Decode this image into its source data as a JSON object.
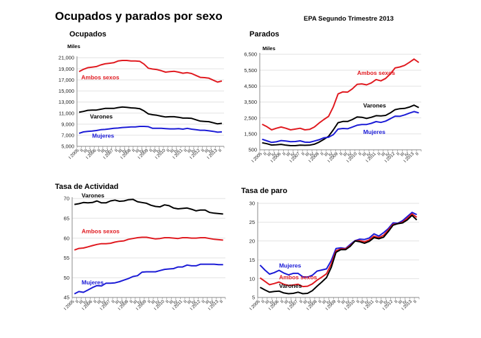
{
  "header": {
    "title": "Ocupados y parados por sexo",
    "source": "EPA   Segundo Trimestre 2013"
  },
  "colors": {
    "ambos": "#e0191f",
    "varones": "#000000",
    "mujeres": "#1a1ad6",
    "grid": "#e2e2e2"
  },
  "quarters": [
    "I 2005",
    "II",
    "III",
    "IV",
    "I 2006",
    "II",
    "III",
    "IV",
    "I 2007",
    "II",
    "III",
    "IV",
    "I 2008",
    "II",
    "III",
    "IV",
    "I 2009",
    "II",
    "III",
    "IV",
    "I 2010",
    "II",
    "III",
    "IV",
    "I 2011",
    "II",
    "III",
    "IV",
    "I 2012",
    "II",
    "III",
    "IV",
    "I 2013",
    "II"
  ],
  "chart_data": [
    {
      "id": "ocupados",
      "type": "line",
      "title": "Ocupados",
      "ylabel": "Miles",
      "ylim": [
        5000,
        21000
      ],
      "yticks": [
        5000,
        7000,
        9000,
        11000,
        13000,
        15000,
        17000,
        19000,
        21000
      ],
      "ytick_labels": [
        "5,000",
        "7,000",
        "9,000",
        "11,000",
        "13,000",
        "15,000",
        "17,000",
        "19,000",
        "21,000"
      ],
      "grid": true,
      "series": [
        {
          "name": "Ambos sexos",
          "key": "ambos",
          "values": [
            18500,
            18900,
            19200,
            19300,
            19400,
            19700,
            19900,
            20000,
            20100,
            20400,
            20500,
            20500,
            20400,
            20400,
            20350,
            19850,
            19100,
            18950,
            18850,
            18650,
            18400,
            18500,
            18550,
            18400,
            18200,
            18300,
            18150,
            17800,
            17450,
            17400,
            17300,
            16950,
            16600,
            16800
          ]
        },
        {
          "name": "Varones",
          "key": "varones",
          "values": [
            11150,
            11300,
            11500,
            11550,
            11550,
            11700,
            11850,
            11850,
            11850,
            12000,
            12100,
            12050,
            11950,
            11900,
            11800,
            11400,
            10850,
            10700,
            10600,
            10450,
            10300,
            10350,
            10350,
            10250,
            10100,
            10100,
            10050,
            9800,
            9550,
            9500,
            9450,
            9250,
            9050,
            9150
          ]
        },
        {
          "name": "Mujeres",
          "key": "mujeres",
          "values": [
            7350,
            7600,
            7700,
            7750,
            7850,
            8000,
            8050,
            8150,
            8250,
            8300,
            8400,
            8450,
            8500,
            8500,
            8600,
            8600,
            8550,
            8250,
            8250,
            8250,
            8200,
            8150,
            8150,
            8200,
            8100,
            8250,
            8100,
            8000,
            7900,
            7900,
            7800,
            7700,
            7550,
            7600
          ]
        }
      ],
      "labels": [
        {
          "text": "Ambos sexos",
          "key": "ambos",
          "x": 0.5,
          "y": 17100
        },
        {
          "text": "Varones",
          "key": "varones",
          "x": 2.5,
          "y": 10000
        },
        {
          "text": "Mujeres",
          "key": "mujeres",
          "x": 3.0,
          "y": 6550
        }
      ]
    },
    {
      "id": "parados",
      "type": "line",
      "title": "Parados",
      "ylabel": "Miles",
      "ylim": [
        500,
        6500
      ],
      "yticks": [
        500,
        1500,
        2500,
        3500,
        4500,
        5500,
        6500
      ],
      "ytick_labels": [
        "500",
        "1,500",
        "2,500",
        "3,500",
        "4,500",
        "5,500",
        "6,500"
      ],
      "grid": true,
      "series": [
        {
          "name": "Ambos sexos",
          "key": "ambos",
          "values": [
            2100,
            1950,
            1750,
            1850,
            1930,
            1850,
            1750,
            1800,
            1850,
            1750,
            1780,
            1930,
            2180,
            2400,
            2600,
            3200,
            4010,
            4140,
            4120,
            4330,
            4610,
            4640,
            4580,
            4700,
            4910,
            4830,
            4980,
            5270,
            5640,
            5700,
            5800,
            5990,
            6200,
            5980
          ]
        },
        {
          "name": "Varones",
          "key": "varones",
          "values": [
            940,
            880,
            800,
            810,
            840,
            790,
            760,
            760,
            790,
            780,
            790,
            850,
            980,
            1150,
            1350,
            1750,
            2200,
            2280,
            2280,
            2400,
            2560,
            2540,
            2470,
            2540,
            2640,
            2630,
            2660,
            2820,
            3020,
            3080,
            3100,
            3180,
            3300,
            3150
          ]
        },
        {
          "name": "Mujeres",
          "key": "mujeres",
          "values": [
            1160,
            1060,
            960,
            1000,
            1080,
            1050,
            1010,
            1020,
            1060,
            980,
            970,
            1050,
            1130,
            1250,
            1290,
            1450,
            1800,
            1840,
            1820,
            1930,
            2040,
            2090,
            2090,
            2160,
            2270,
            2220,
            2300,
            2450,
            2610,
            2600,
            2690,
            2800,
            2900,
            2820
          ]
        }
      ],
      "labels": [
        {
          "text": "Ambos sexos",
          "key": "ambos",
          "x": 20.0,
          "y": 5200
        },
        {
          "text": "Varones",
          "key": "varones",
          "x": 21.3,
          "y": 3150
        },
        {
          "text": "Mujeres",
          "key": "mujeres",
          "x": 21.3,
          "y": 1500
        }
      ]
    },
    {
      "id": "tasa-actividad",
      "type": "line",
      "title": "Tasa de Actividad",
      "ylabel": "",
      "ylim": [
        45,
        70
      ],
      "yticks": [
        45,
        50,
        55,
        60,
        65,
        70
      ],
      "ytick_labels": [
        "45",
        "50",
        "55",
        "60",
        "65",
        "70"
      ],
      "grid": true,
      "series": [
        {
          "name": "Ambos sexos",
          "key": "ambos",
          "values": [
            57.0,
            57.4,
            57.5,
            57.8,
            58.1,
            58.4,
            58.6,
            58.6,
            58.7,
            59.0,
            59.2,
            59.3,
            59.7,
            59.9,
            60.1,
            60.2,
            60.2,
            60.0,
            59.8,
            59.9,
            60.1,
            60.1,
            60.0,
            59.9,
            60.1,
            60.1,
            60.0,
            60.0,
            60.1,
            60.1,
            59.9,
            59.7,
            59.6,
            59.5
          ]
        },
        {
          "name": "Varones",
          "key": "varones",
          "values": [
            68.5,
            68.7,
            69.0,
            68.9,
            69.0,
            69.4,
            68.9,
            68.9,
            69.4,
            69.6,
            69.3,
            69.4,
            69.7,
            69.8,
            69.2,
            69.0,
            68.8,
            68.3,
            68.0,
            67.9,
            68.4,
            68.2,
            67.6,
            67.4,
            67.5,
            67.6,
            67.3,
            66.9,
            67.1,
            67.1,
            66.5,
            66.3,
            66.2,
            66.1
          ]
        },
        {
          "name": "Mujeres",
          "key": "mujeres",
          "values": [
            45.9,
            46.5,
            46.3,
            46.9,
            47.5,
            48.0,
            47.9,
            48.6,
            48.6,
            48.7,
            49.0,
            49.4,
            49.8,
            50.3,
            50.5,
            51.4,
            51.5,
            51.5,
            51.5,
            51.8,
            52.1,
            52.2,
            52.3,
            52.7,
            52.7,
            53.2,
            53.0,
            53.0,
            53.4,
            53.4,
            53.4,
            53.4,
            53.3,
            53.3
          ]
        }
      ],
      "labels": [
        {
          "text": "Varones",
          "key": "varones",
          "x": 1.6,
          "y": 70.3
        },
        {
          "text": "Ambos sexos",
          "key": "ambos",
          "x": 1.6,
          "y": 61.2
        },
        {
          "text": "Mujeres",
          "key": "mujeres",
          "x": 1.6,
          "y": 48.3
        }
      ]
    },
    {
      "id": "tasa-paro",
      "type": "line",
      "title": "Tasa de paro",
      "ylabel": "",
      "ylim": [
        5,
        30
      ],
      "yticks": [
        5,
        10,
        15,
        20,
        25,
        30
      ],
      "ytick_labels": [
        "5",
        "10",
        "15",
        "20",
        "25",
        "30"
      ],
      "grid": true,
      "series": [
        {
          "name": "Mujeres",
          "key": "mujeres",
          "values": [
            13.6,
            12.3,
            11.2,
            11.6,
            12.2,
            11.5,
            11.0,
            11.4,
            11.4,
            10.5,
            10.4,
            10.9,
            12.0,
            12.3,
            12.6,
            14.8,
            18.0,
            18.2,
            18.0,
            19.1,
            20.1,
            20.5,
            20.4,
            20.8,
            21.9,
            21.3,
            22.2,
            23.3,
            24.8,
            24.7,
            25.4,
            26.5,
            27.6,
            27.0
          ]
        },
        {
          "name": "Ambos sexos",
          "key": "ambos",
          "values": [
            10.2,
            9.3,
            8.4,
            8.7,
            9.1,
            8.5,
            8.2,
            8.3,
            8.5,
            7.9,
            8.0,
            8.6,
            9.6,
            10.4,
            11.3,
            13.9,
            17.4,
            17.9,
            17.9,
            18.8,
            20.0,
            20.1,
            19.8,
            20.3,
            21.3,
            20.9,
            21.5,
            22.9,
            24.4,
            24.6,
            25.0,
            26.0,
            27.2,
            26.3
          ]
        },
        {
          "name": "Varones",
          "key": "varones",
          "values": [
            7.7,
            7.0,
            6.4,
            6.6,
            6.7,
            6.2,
            6.0,
            6.1,
            6.4,
            6.0,
            6.1,
            6.8,
            8.0,
            9.1,
            10.3,
            13.0,
            17.0,
            17.7,
            17.7,
            18.6,
            20.0,
            19.8,
            19.4,
            19.9,
            20.9,
            20.6,
            21.0,
            22.5,
            24.2,
            24.6,
            24.8,
            25.6,
            26.8,
            25.6
          ]
        }
      ],
      "labels": [
        {
          "text": "Mujeres",
          "key": "mujeres",
          "x": 4.0,
          "y": 12.9
        },
        {
          "text": "Ambos sexos",
          "key": "ambos",
          "x": 4.0,
          "y": 9.8
        },
        {
          "text": "Varones",
          "key": "varones",
          "x": 4.0,
          "y": 7.6
        }
      ]
    }
  ]
}
